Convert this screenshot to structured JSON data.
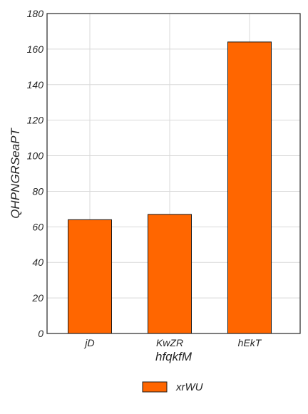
{
  "chart_data": {
    "type": "bar",
    "categories": [
      "jD",
      "KwZR",
      "hEkT"
    ],
    "series": [
      {
        "name": "xrWU",
        "values": [
          64,
          67,
          164
        ],
        "color": "#ff6600"
      }
    ],
    "xlabel": "hfqkfM",
    "ylabel": "QHPNGRSeaPT",
    "ylim": [
      0,
      180
    ],
    "yticks": [
      "0",
      "20",
      "40",
      "60",
      "80",
      "100",
      "120",
      "140",
      "160",
      "180"
    ],
    "grid": true,
    "legend": {
      "placement": "bottom-center"
    },
    "colors": {
      "bar": "#ff6600",
      "bar_edge": "#1a1a1a",
      "grid": "#d9d9d9",
      "frame": "#262626"
    }
  }
}
